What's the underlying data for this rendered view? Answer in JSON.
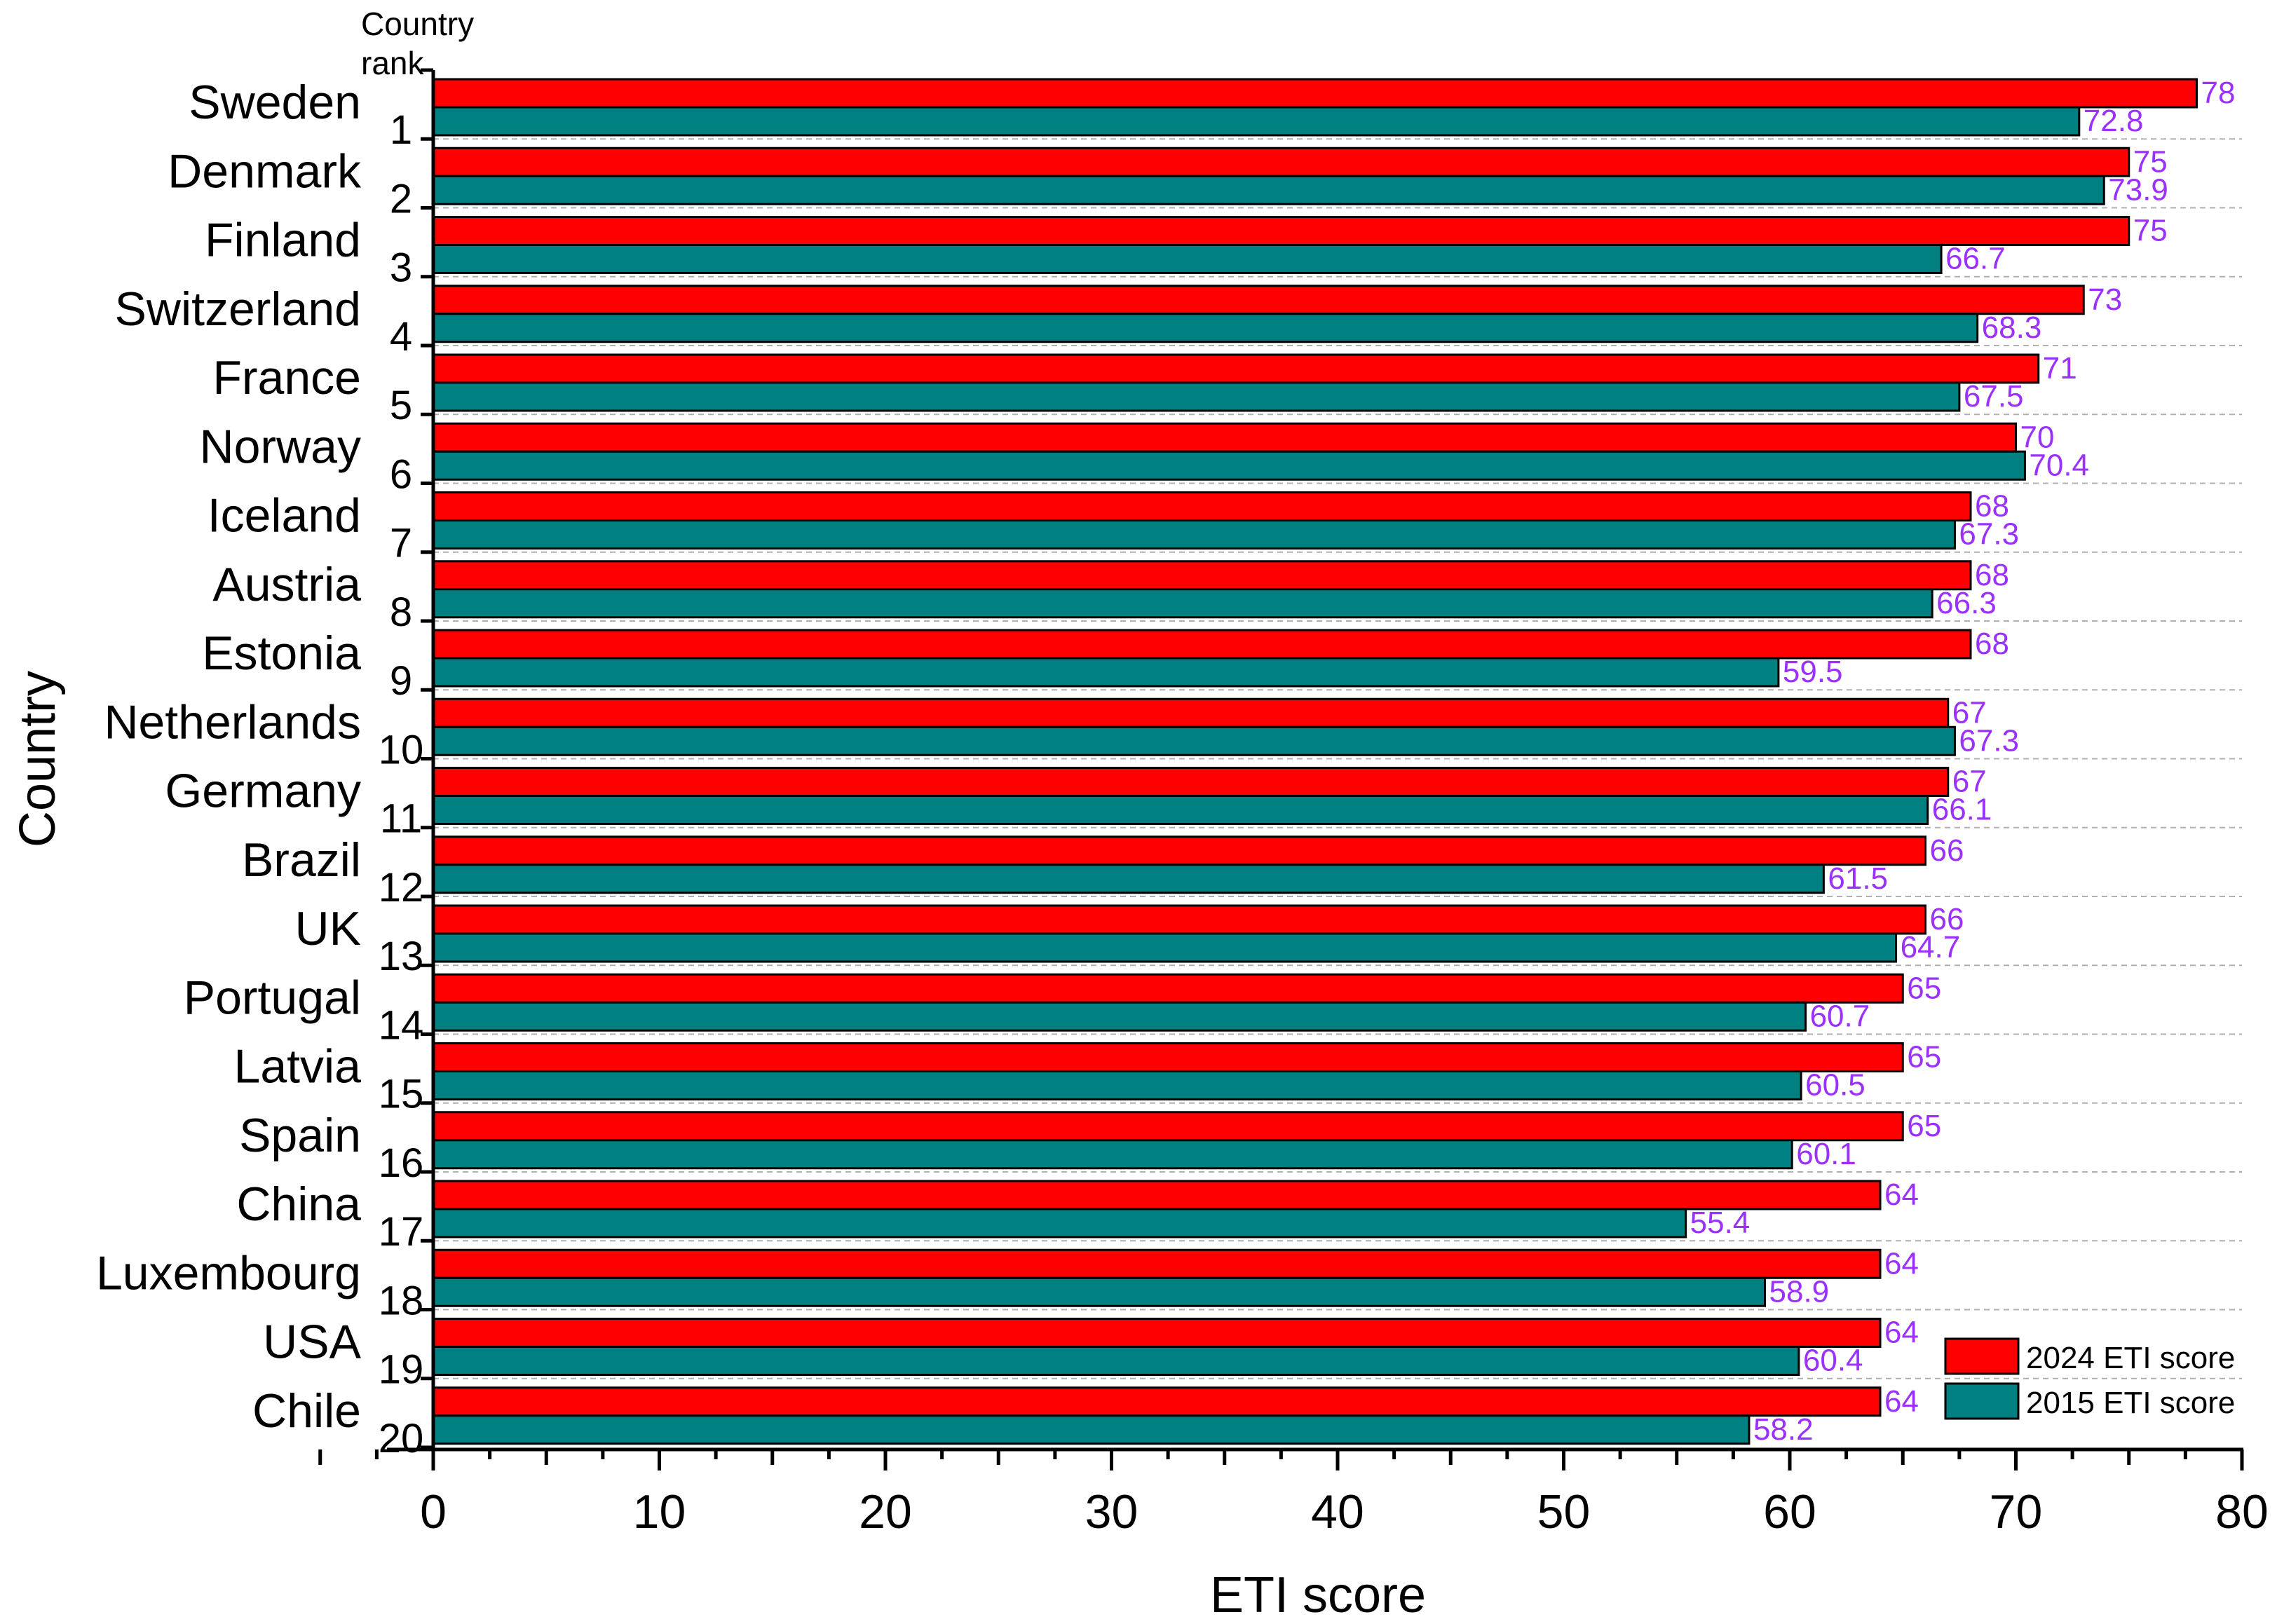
{
  "chart_data": {
    "type": "bar",
    "orientation": "horizontal",
    "xlabel": "ETI score",
    "ylabel": "Country",
    "rank_header": "Country\nrank",
    "xlim": [
      0,
      80
    ],
    "xticks": [
      0,
      10,
      20,
      30,
      40,
      50,
      60,
      70,
      80
    ],
    "grid": "horizontal dashed separators between countries",
    "legend_position": "bottom-right",
    "categories": [
      "Sweden",
      "Denmark",
      "Finland",
      "Switzerland",
      "France",
      "Norway",
      "Iceland",
      "Austria",
      "Estonia",
      "Netherlands",
      "Germany",
      "Brazil",
      "UK",
      "Portugal",
      "Latvia",
      "Spain",
      "China",
      "Luxembourg",
      "USA",
      "Chile"
    ],
    "ranks": [
      "1",
      "2",
      "3",
      "4",
      "5",
      "6",
      "7",
      "8",
      "9",
      "10",
      "11",
      "12",
      "13",
      "14",
      "15",
      "16",
      "17",
      "18",
      "19",
      "20"
    ],
    "series": [
      {
        "name": "2024 ETI score",
        "color": "#ff0000",
        "values": [
          78,
          75,
          75,
          73,
          71,
          70,
          68,
          68,
          68,
          67,
          67,
          66,
          66,
          65,
          65,
          65,
          64,
          64,
          64,
          64
        ],
        "labels": [
          "78",
          "75",
          "75",
          "73",
          "71",
          "70",
          "68",
          "68",
          "68",
          "67",
          "67",
          "66",
          "66",
          "65",
          "65",
          "65",
          "64",
          "64",
          "64",
          "64"
        ]
      },
      {
        "name": "2015 ETI score",
        "color": "#008080",
        "values": [
          72.8,
          73.9,
          66.7,
          68.3,
          67.5,
          70.4,
          67.3,
          66.3,
          59.5,
          67.3,
          66.1,
          61.5,
          64.7,
          60.7,
          60.5,
          60.1,
          55.4,
          58.9,
          60.4,
          58.2
        ],
        "labels": [
          "72.8",
          "73.9",
          "66.7",
          "68.3",
          "67.5",
          "70.4",
          "67.3",
          "66.3",
          "59.5",
          "67.3",
          "66.1",
          "61.5",
          "64.7",
          "60.7",
          "60.5",
          "60.1",
          "55.4",
          "58.9",
          "60.4",
          "58.2"
        ]
      }
    ],
    "value_label_color": "#9b30ff"
  }
}
